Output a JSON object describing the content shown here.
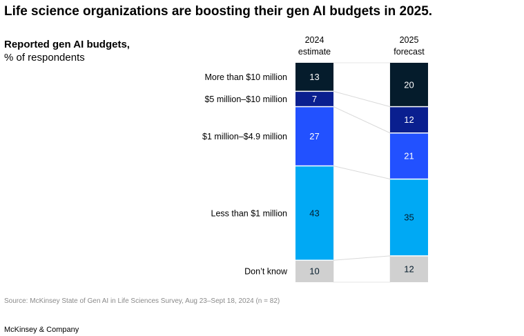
{
  "title": "Life science organizations are boosting their gen AI budgets in 2025.",
  "subtitle": {
    "bold": "Reported gen AI budgets,",
    "normal": "% of respondents"
  },
  "chart_data": {
    "type": "bar",
    "stacked": true,
    "unit": "% of respondents",
    "columns": [
      {
        "label_line1": "2024",
        "label_line2": "estimate"
      },
      {
        "label_line1": "2025",
        "label_line2": "forecast"
      }
    ],
    "series": [
      {
        "name": "More than $10 million",
        "values": [
          13,
          20
        ],
        "color": "#051c2c",
        "text_color": "#ffffff"
      },
      {
        "name": "$5 million–$10 million",
        "values": [
          7,
          12
        ],
        "color": "#0a1f8f",
        "text_color": "#ffffff"
      },
      {
        "name": "$1 million–$4.9 million",
        "values": [
          27,
          21
        ],
        "color": "#2251ff",
        "text_color": "#ffffff"
      },
      {
        "name": "Less than $1 million",
        "values": [
          43,
          35
        ],
        "color": "#00a9f4",
        "text_color": "#051c2c"
      },
      {
        "name": "Don’t know",
        "values": [
          10,
          12
        ],
        "color": "#d0d0d0",
        "text_color": "#051c2c"
      }
    ]
  },
  "source": "Source: McKinsey State of Gen AI in Life Sciences Survey, Aug 23–Sept 18, 2024 (n = 82)",
  "brand": "McKinsey & Company"
}
